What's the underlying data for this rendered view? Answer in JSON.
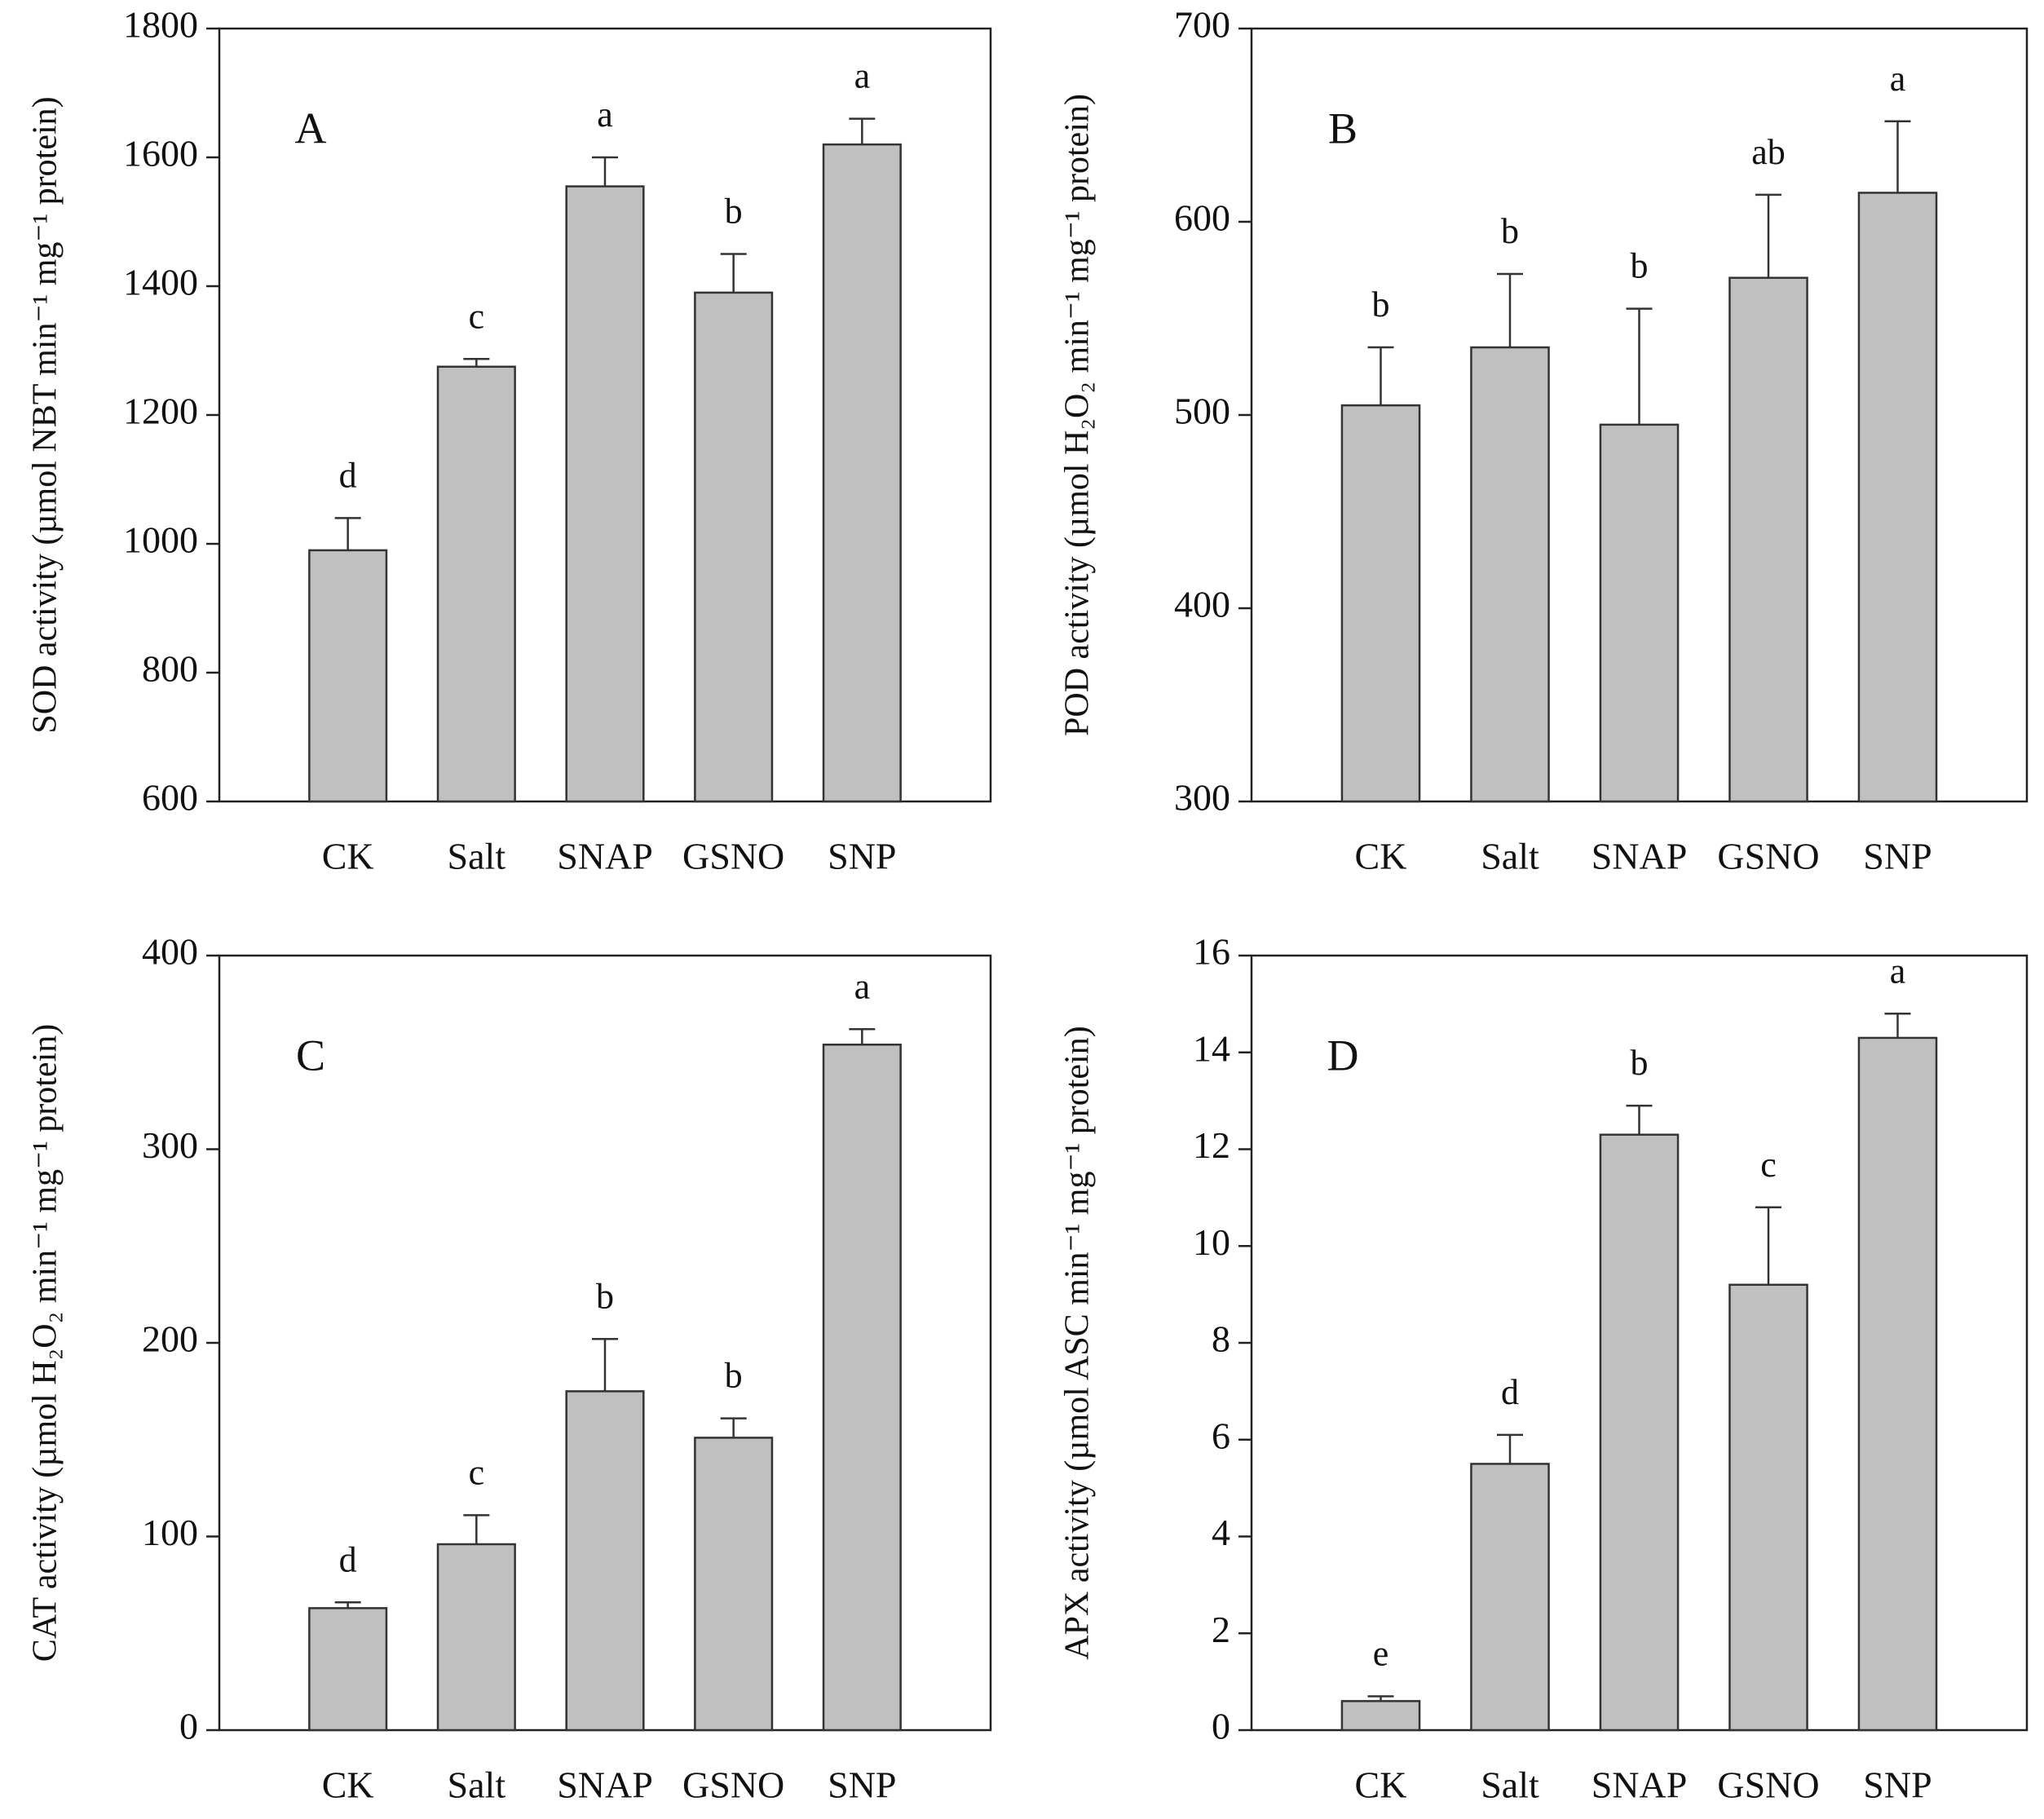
{
  "chart_data": [
    {
      "type": "bar",
      "panel_label": "A",
      "y_label": "SOD activity (µmol NBT min⁻¹ mg⁻¹ protein)",
      "categories": [
        "CK",
        "Salt",
        "SNAP",
        "GSNO",
        "SNP"
      ],
      "values": [
        990,
        1275,
        1555,
        1390,
        1620
      ],
      "errors": [
        50,
        12,
        45,
        60,
        40
      ],
      "letters": [
        "d",
        "c",
        "a",
        "b",
        "a"
      ],
      "color": "#c0c0c0",
      "ylim": [
        600,
        1800
      ],
      "yticks": [
        600,
        800,
        1000,
        1200,
        1400,
        1600,
        1800
      ]
    },
    {
      "type": "bar",
      "panel_label": "B",
      "y_label": "POD activity (µmol H₂O₂ min⁻¹ mg⁻¹ protein)",
      "categories": [
        "CK",
        "Salt",
        "SNAP",
        "GSNO",
        "SNP"
      ],
      "values": [
        505,
        535,
        495,
        571,
        615
      ],
      "errors": [
        30,
        38,
        60,
        43,
        37
      ],
      "letters": [
        "b",
        "b",
        "b",
        "ab",
        "a"
      ],
      "color": "#c0c0c0",
      "ylim": [
        300,
        700
      ],
      "yticks": [
        300,
        400,
        500,
        600,
        700
      ]
    },
    {
      "type": "bar",
      "panel_label": "C",
      "y_label": "CAT activity (µmol H₂O₂ min⁻¹ mg⁻¹ protein)",
      "categories": [
        "CK",
        "Salt",
        "SNAP",
        "GSNO",
        "SNP"
      ],
      "values": [
        63,
        96,
        175,
        151,
        354
      ],
      "errors": [
        3,
        15,
        27,
        10,
        8
      ],
      "letters": [
        "d",
        "c",
        "b",
        "b",
        "a"
      ],
      "color": "#c0c0c0",
      "ylim": [
        0,
        400
      ],
      "yticks": [
        0,
        100,
        200,
        300,
        400
      ]
    },
    {
      "type": "bar",
      "panel_label": "D",
      "y_label": "APX activity (µmol ASC min⁻¹ mg⁻¹ protein)",
      "categories": [
        "CK",
        "Salt",
        "SNAP",
        "GSNO",
        "SNP"
      ],
      "values": [
        0.6,
        5.5,
        12.3,
        9.2,
        14.3
      ],
      "errors": [
        0.1,
        0.6,
        0.6,
        1.6,
        0.5
      ],
      "letters": [
        "e",
        "d",
        "b",
        "c",
        "a"
      ],
      "color": "#c0c0c0",
      "ylim": [
        0,
        16
      ],
      "yticks": [
        0,
        2,
        4,
        6,
        8,
        10,
        12,
        14,
        16
      ]
    }
  ]
}
